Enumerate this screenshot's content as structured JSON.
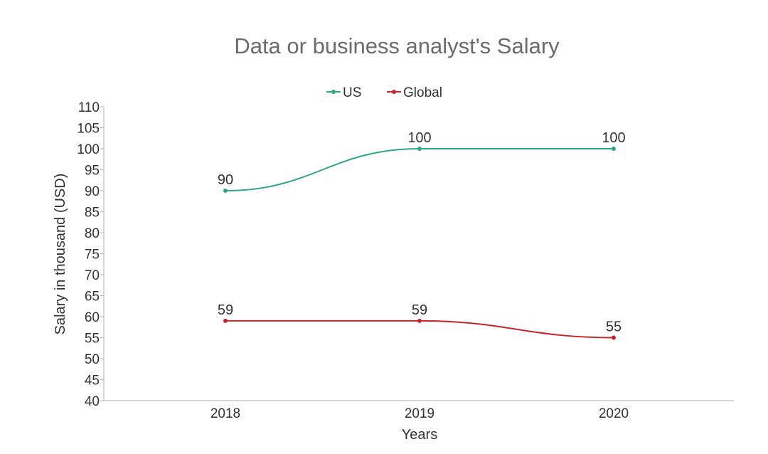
{
  "chart_data": {
    "type": "line",
    "title": "Data or business analyst's Salary",
    "xlabel": "Years",
    "ylabel": "Salary in thousand (USD)",
    "categories": [
      "2018",
      "2019",
      "2020"
    ],
    "ylim": [
      40,
      110
    ],
    "yticks": [
      40,
      45,
      50,
      55,
      60,
      65,
      70,
      75,
      80,
      85,
      90,
      95,
      100,
      105,
      110
    ],
    "grid": false,
    "legend_position": "top",
    "series": [
      {
        "name": "US",
        "values": [
          90,
          100,
          100
        ],
        "color": "#2ea584"
      },
      {
        "name": "Global",
        "values": [
          59,
          59,
          55
        ],
        "color": "#c5252b"
      }
    ]
  }
}
